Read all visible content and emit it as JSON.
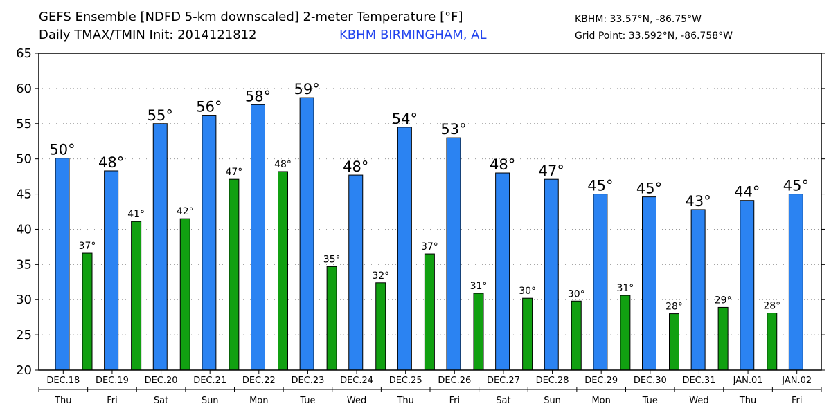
{
  "header": {
    "title_line1": "GEFS Ensemble [NDFD 5-km downscaled] 2-meter Temperature [°F]",
    "title_line2": "Daily TMAX/TMIN Init: 2014121812",
    "station": "KBHM BIRMINGHAM, AL",
    "coord_line1": "KBHM: 33.57°N, -86.75°W",
    "coord_line2": "Grid Point: 33.592°N, -86.758°W"
  },
  "colors": {
    "tmax": "#2b83f2",
    "tmin": "#11a011",
    "station_text": "#2244ee"
  },
  "chart_data": {
    "type": "bar",
    "ylim": [
      20,
      65
    ],
    "yticks": [
      20,
      25,
      30,
      35,
      40,
      45,
      50,
      55,
      60,
      65
    ],
    "grid": "horizontal-dotted",
    "dates": [
      "DEC.18",
      "DEC.19",
      "DEC.20",
      "DEC.21",
      "DEC.22",
      "DEC.23",
      "DEC.24",
      "DEC.25",
      "DEC.26",
      "DEC.27",
      "DEC.28",
      "DEC.29",
      "DEC.30",
      "DEC.31",
      "JAN.01",
      "JAN.02"
    ],
    "weekdays": [
      "Thu",
      "Fri",
      "Sat",
      "Sun",
      "Mon",
      "Tue",
      "Wed",
      "Thu",
      "Fri",
      "Sat",
      "Sun",
      "Mon",
      "Tue",
      "Wed",
      "Thu",
      "Fri"
    ],
    "degree_symbol": "°",
    "tmax": {
      "values": [
        50.1,
        48.3,
        55.0,
        56.2,
        57.7,
        58.7,
        47.7,
        54.5,
        53.0,
        48.0,
        47.1,
        45.0,
        44.6,
        42.8,
        44.1,
        45.0
      ],
      "labels": [
        "50",
        "48",
        "55",
        "56",
        "58",
        "59",
        "48",
        "54",
        "53",
        "48",
        "47",
        "45",
        "45",
        "43",
        "44",
        "45"
      ]
    },
    "tmin": {
      "values": [
        36.6,
        41.1,
        41.5,
        47.1,
        48.2,
        34.7,
        32.4,
        36.5,
        30.9,
        30.2,
        29.8,
        30.6,
        28.0,
        28.9,
        28.1
      ],
      "labels": [
        "37",
        "41",
        "42",
        "47",
        "48",
        "35",
        "32",
        "37",
        "31",
        "30",
        "30",
        "31",
        "28",
        "29",
        "28"
      ]
    }
  }
}
